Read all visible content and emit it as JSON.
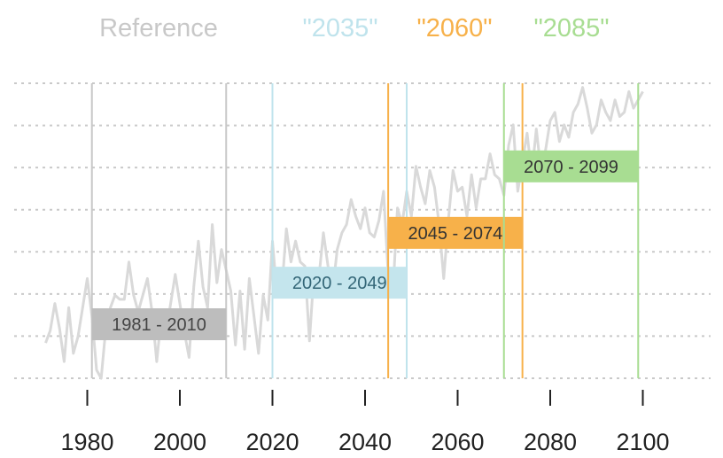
{
  "chart_data": {
    "type": "line",
    "title": "",
    "xlabel": "",
    "ylabel": "",
    "xlim": [
      1970,
      2102
    ],
    "ylim": [
      0,
      7.1
    ],
    "x_ticks": [
      1980,
      2000,
      2020,
      2040,
      2060,
      2080,
      2100
    ],
    "grid": "horizontal dashed",
    "series": [
      {
        "color": "#d9d9d9",
        "x": [
          1971,
          1972,
          1973,
          1974,
          1975,
          1976,
          1977,
          1978,
          1979,
          1980,
          1981,
          1982,
          1983,
          1984,
          1985,
          1986,
          1987,
          1988,
          1989,
          1990,
          1991,
          1992,
          1993,
          1994,
          1995,
          1996,
          1997,
          1998,
          1999,
          2000,
          2001,
          2002,
          2003,
          2004,
          2005,
          2006,
          2007,
          2008,
          2009,
          2010,
          2011,
          2012,
          2013,
          2014,
          2015,
          2016,
          2017,
          2018,
          2019,
          2020,
          2021,
          2022,
          2023,
          2024,
          2025,
          2026,
          2027,
          2028,
          2029,
          2030,
          2031,
          2032,
          2033,
          2034,
          2035,
          2036,
          2037,
          2038,
          2039,
          2040,
          2041,
          2042,
          2043,
          2044,
          2045,
          2046,
          2047,
          2048,
          2049,
          2050,
          2051,
          2052,
          2053,
          2054,
          2055,
          2056,
          2057,
          2058,
          2059,
          2060,
          2061,
          2062,
          2063,
          2064,
          2065,
          2066,
          2067,
          2068,
          2069,
          2070,
          2071,
          2072,
          2073,
          2074,
          2075,
          2076,
          2077,
          2078,
          2079,
          2080,
          2081,
          2082,
          2083,
          2084,
          2085,
          2086,
          2087,
          2088,
          2089,
          2090,
          2091,
          2092,
          2093,
          2094,
          2095,
          2096,
          2097,
          2098,
          2099,
          2100
        ],
        "y": [
          0.85,
          1.15,
          1.8,
          1.2,
          0.4,
          1.7,
          0.6,
          1.0,
          1.7,
          2.4,
          1.5,
          0.2,
          0.0,
          1.2,
          1.7,
          2.0,
          1.9,
          1.9,
          2.8,
          2.0,
          1.6,
          2.0,
          2.4,
          1.6,
          0.4,
          1.5,
          1.1,
          1.8,
          2.5,
          1.8,
          1.1,
          0.5,
          2.2,
          3.3,
          2.2,
          1.7,
          3.7,
          2.3,
          3.1,
          2.6,
          2.1,
          0.8,
          2.1,
          0.7,
          2.4,
          1.5,
          0.6,
          2.0,
          1.4,
          3.3,
          2.0,
          2.1,
          3.6,
          2.8,
          3.3,
          2.8,
          2.7,
          0.9,
          2.6,
          2.4,
          3.5,
          2.7,
          2.1,
          3.1,
          3.5,
          3.7,
          4.3,
          3.9,
          3.6,
          4.1,
          3.5,
          3.4,
          3.8,
          4.5,
          2.5,
          2.0,
          4.1,
          3.7,
          4.5,
          3.9,
          5.1,
          4.6,
          4.2,
          5.0,
          4.6,
          3.7,
          2.4,
          3.8,
          5.0,
          4.5,
          4.6,
          3.9,
          4.9,
          4.1,
          4.8,
          4.8,
          5.4,
          4.9,
          4.8,
          4.4,
          5.6,
          6.1,
          4.5,
          5.2,
          5.9,
          4.9,
          6.0,
          5.0,
          5.5,
          6.2,
          6.4,
          5.7,
          6.1,
          5.8,
          6.4,
          6.6,
          7.0,
          6.5,
          5.9,
          6.1,
          6.7,
          6.4,
          6.2,
          6.7,
          6.3,
          6.4,
          6.9,
          6.5,
          6.7,
          6.9
        ]
      }
    ],
    "periods": [
      {
        "title": "Reference",
        "label": "1981 - 2010",
        "start": 1981,
        "end": 2010,
        "color": "#c8c8c8",
        "box_color": "#bdbdbd",
        "text_color": "#444444",
        "box_y": 1.3
      },
      {
        "title": "\"2035\"",
        "label": "2020 - 2049",
        "start": 2020,
        "end": 2049,
        "color": "#bfe3ec",
        "box_color": "#c4e5ed",
        "text_color": "#336677",
        "box_y": 2.3
      },
      {
        "title": "\"2060\"",
        "label": "2045 - 2074",
        "start": 2045,
        "end": 2074,
        "color": "#f7b14a",
        "box_color": "#f7b14a",
        "text_color": "#333333",
        "box_y": 3.5
      },
      {
        "title": "\"2085\"",
        "label": "2070 - 2099",
        "start": 2070,
        "end": 2099,
        "color": "#a8dd92",
        "box_color": "#a8dd92",
        "text_color": "#333333",
        "box_y": 5.1
      }
    ]
  }
}
